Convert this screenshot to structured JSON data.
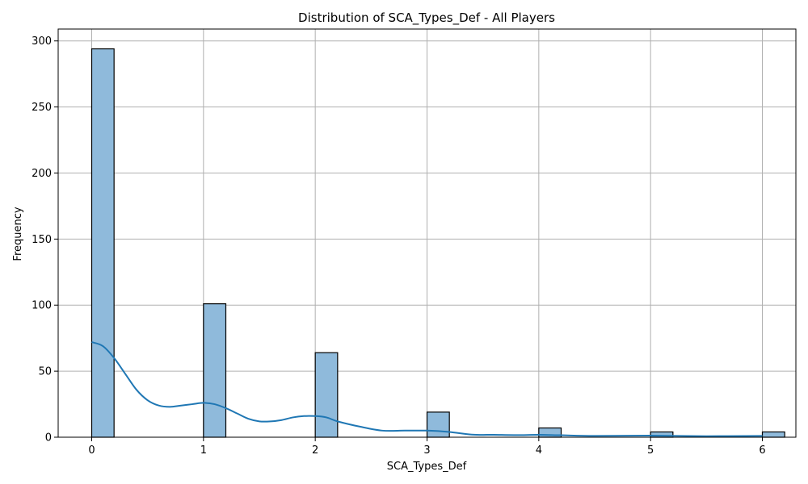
{
  "chart_data": {
    "type": "bar",
    "title": "Distribution of SCA_Types_Def - All Players",
    "xlabel": "SCA_Types_Def",
    "ylabel": "Frequency",
    "xlim": [
      -0.3,
      6.3
    ],
    "ylim": [
      0,
      309
    ],
    "x_ticks": [
      "0",
      "1",
      "2",
      "3",
      "4",
      "5",
      "6"
    ],
    "y_ticks": [
      "0",
      "50",
      "100",
      "150",
      "200",
      "250",
      "300"
    ],
    "grid": true,
    "bar_width": 0.2,
    "bars": [
      {
        "x": 0,
        "value": 294
      },
      {
        "x": 1,
        "value": 101
      },
      {
        "x": 2,
        "value": 64
      },
      {
        "x": 3,
        "value": 19
      },
      {
        "x": 4,
        "value": 7
      },
      {
        "x": 5,
        "value": 4
      },
      {
        "x": 6,
        "value": 4
      }
    ],
    "kde": {
      "x": [
        0,
        0.1,
        0.2,
        0.3,
        0.4,
        0.5,
        0.6,
        0.7,
        0.8,
        0.9,
        1.0,
        1.1,
        1.2,
        1.3,
        1.4,
        1.5,
        1.6,
        1.7,
        1.8,
        1.9,
        2.0,
        2.1,
        2.2,
        2.4,
        2.6,
        2.8,
        3.0,
        3.2,
        3.4,
        3.6,
        3.8,
        4.0,
        4.2,
        4.5,
        5.0,
        5.5,
        6.0
      ],
      "y": [
        72,
        69,
        60,
        48,
        36,
        28,
        24,
        23,
        24,
        25,
        26,
        25,
        22,
        18,
        14,
        12,
        12,
        13,
        15,
        16,
        16,
        15,
        12,
        8,
        5,
        5,
        5,
        4,
        2,
        1.8,
        1.6,
        1.8,
        1.5,
        1.0,
        1.2,
        0.8,
        1.0
      ]
    },
    "colors": {
      "bar_fill": "#8fbadb",
      "bar_edge": "#000000",
      "kde_line": "#1f77b4",
      "grid": "#b0b0b0"
    }
  }
}
